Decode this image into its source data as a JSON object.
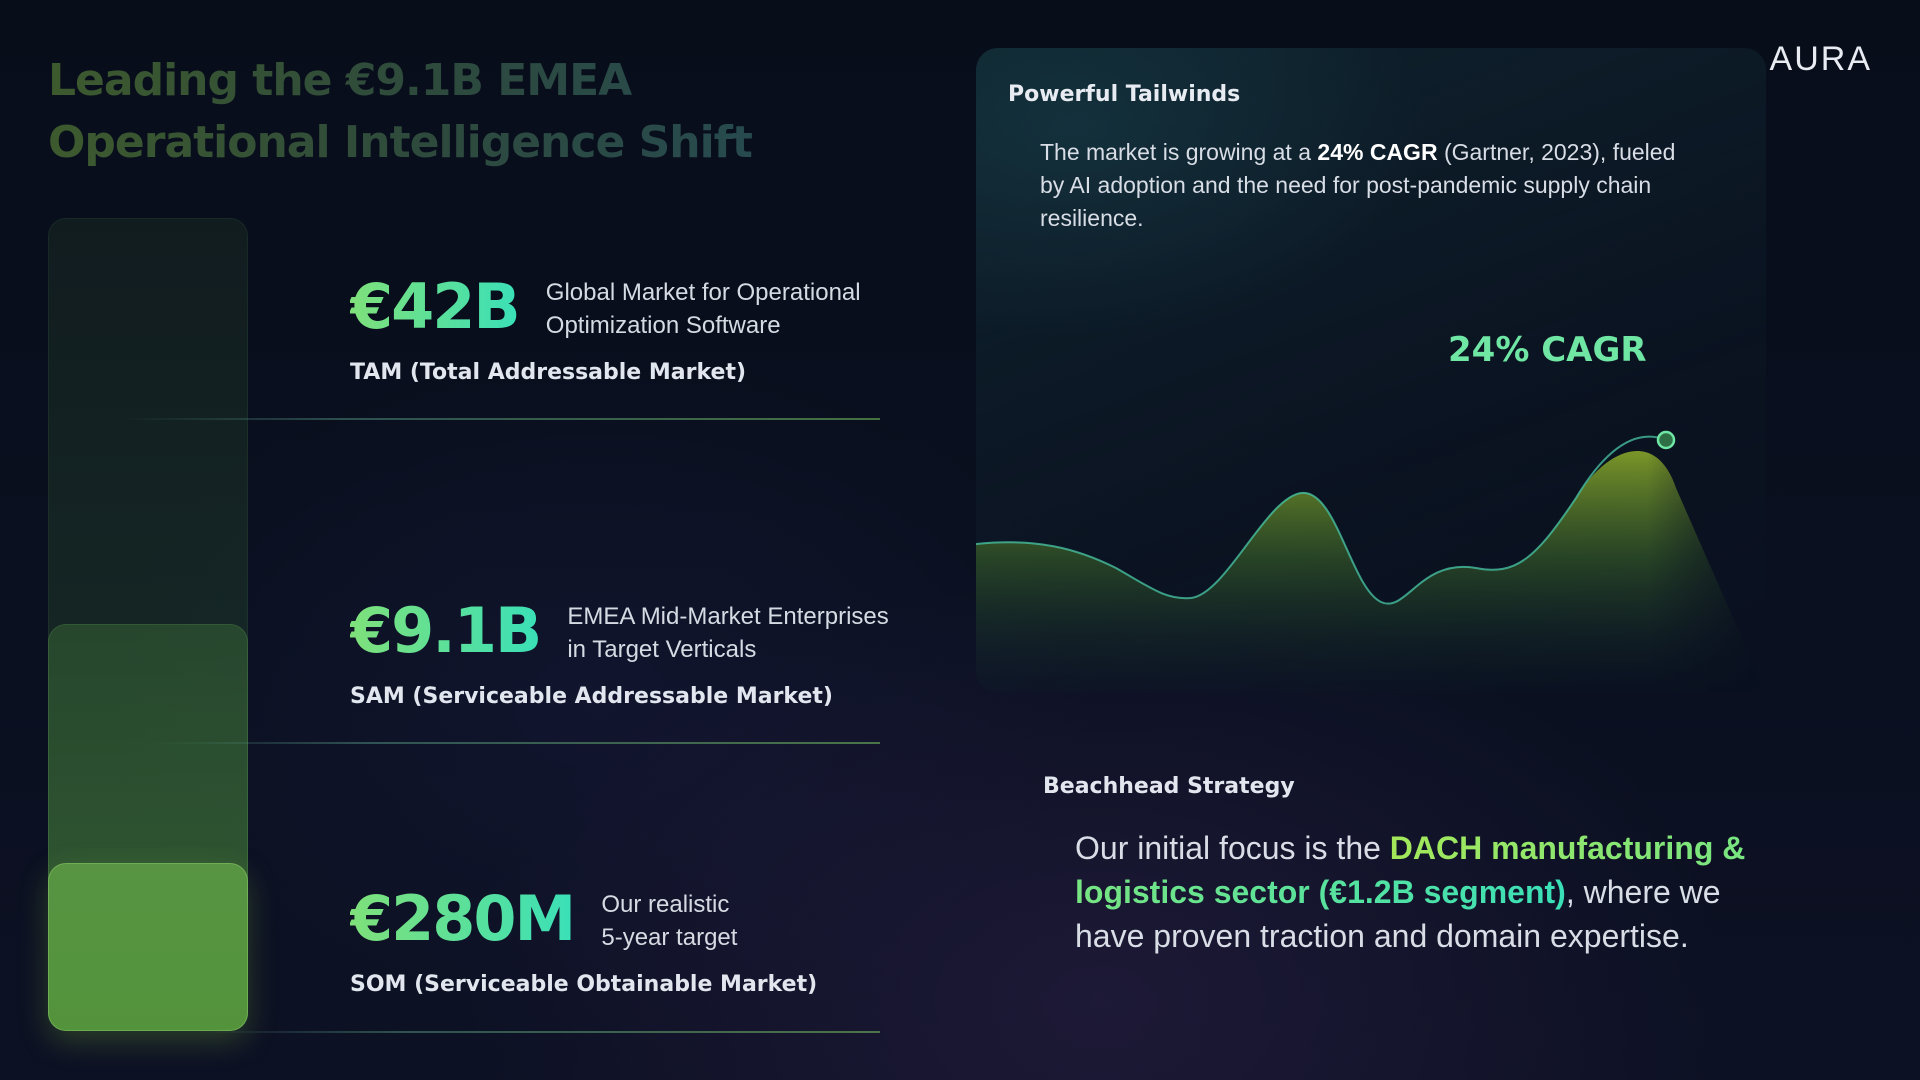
{
  "title": {
    "line1": "Leading the €9.1B EMEA",
    "line2": "Operational Intelligence Shift"
  },
  "brand": {
    "logo": "AURA"
  },
  "markets": [
    {
      "value": "€42B",
      "desc_line1": "Global Market for Operational",
      "desc_line2": "Optimization Software",
      "label": "TAM (Total Addressable Market)"
    },
    {
      "value": "€9.1B",
      "desc_line1": "EMEA Mid-Market Enterprises",
      "desc_line2": "in Target Verticals",
      "label": "SAM (Serviceable Addressable Market)"
    },
    {
      "value": "€280M",
      "desc_line1": "Our realistic",
      "desc_line2": "5-year target",
      "label": "SOM (Serviceable Obtainable Market)"
    }
  ],
  "tailwinds": {
    "title": "Powerful Tailwinds",
    "body_pre": "The market is growing at a ",
    "body_bold": "24% CAGR",
    "body_post": " (Gartner, 2023), fueled by AI adoption and the need for post-pandemic supply chain resilience.",
    "cagr_label": "24% CAGR"
  },
  "beachhead": {
    "title": "Beachhead Strategy",
    "body_pre": "Our initial focus is the ",
    "body_highlight": "DACH manufacturing & logistics sector (€1.2B segment)",
    "body_post": ", where we have proven traction and domain expertise."
  },
  "colors": {
    "accent_green": "#7fe07a",
    "accent_teal": "#3ae0b8",
    "background": "#0a1020"
  }
}
